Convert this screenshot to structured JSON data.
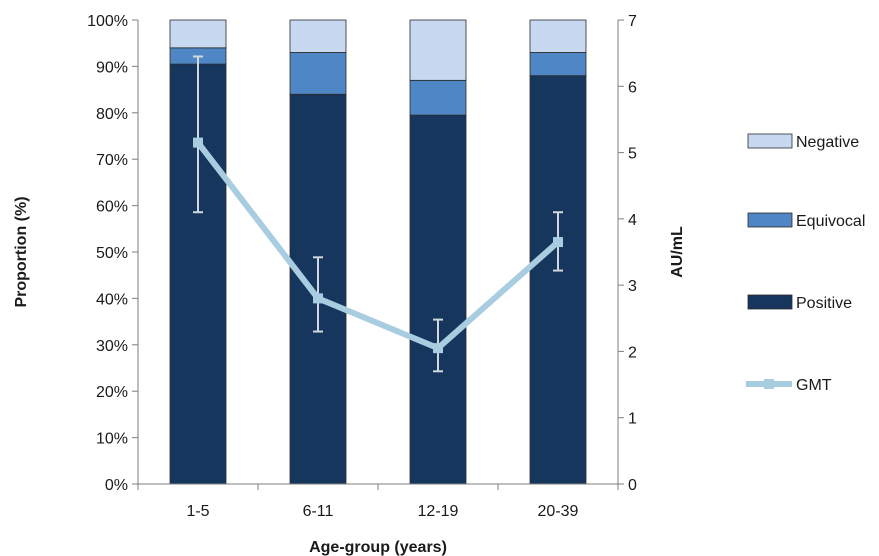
{
  "chart_data": {
    "type": "bar",
    "stacked": true,
    "categories": [
      "1-5",
      "6-11",
      "12-19",
      "20-39"
    ],
    "xlabel": "Age-group (years)",
    "ylabel": "Proportion (%)",
    "y2label": "AU/mL",
    "ylim": [
      0,
      100
    ],
    "y2lim": [
      0,
      7
    ],
    "yticks": [
      "0%",
      "10%",
      "20%",
      "30%",
      "40%",
      "50%",
      "60%",
      "70%",
      "80%",
      "90%",
      "100%"
    ],
    "y2ticks": [
      "0",
      "1",
      "2",
      "3",
      "4",
      "5",
      "6",
      "7"
    ],
    "series": [
      {
        "name": "Positive",
        "color": "#17365d",
        "values": [
          90.5,
          84,
          79.5,
          88
        ]
      },
      {
        "name": "Equivocal",
        "color": "#4f87c6",
        "values": [
          3.5,
          9,
          7.5,
          5
        ]
      },
      {
        "name": "Negative",
        "color": "#c6d9f0",
        "values": [
          6,
          7,
          13,
          7
        ]
      }
    ],
    "line_series": {
      "name": "GMT",
      "axis": "right",
      "color": "#a9cde0",
      "values": [
        5.15,
        2.8,
        2.05,
        3.65
      ],
      "error_low": [
        4.1,
        2.3,
        1.7,
        3.22
      ],
      "error_high": [
        6.45,
        3.42,
        2.48,
        4.1
      ]
    },
    "legend": [
      "Negative",
      "Equivocal",
      "Positive",
      "GMT"
    ],
    "legend_position": "right",
    "grid": false
  }
}
